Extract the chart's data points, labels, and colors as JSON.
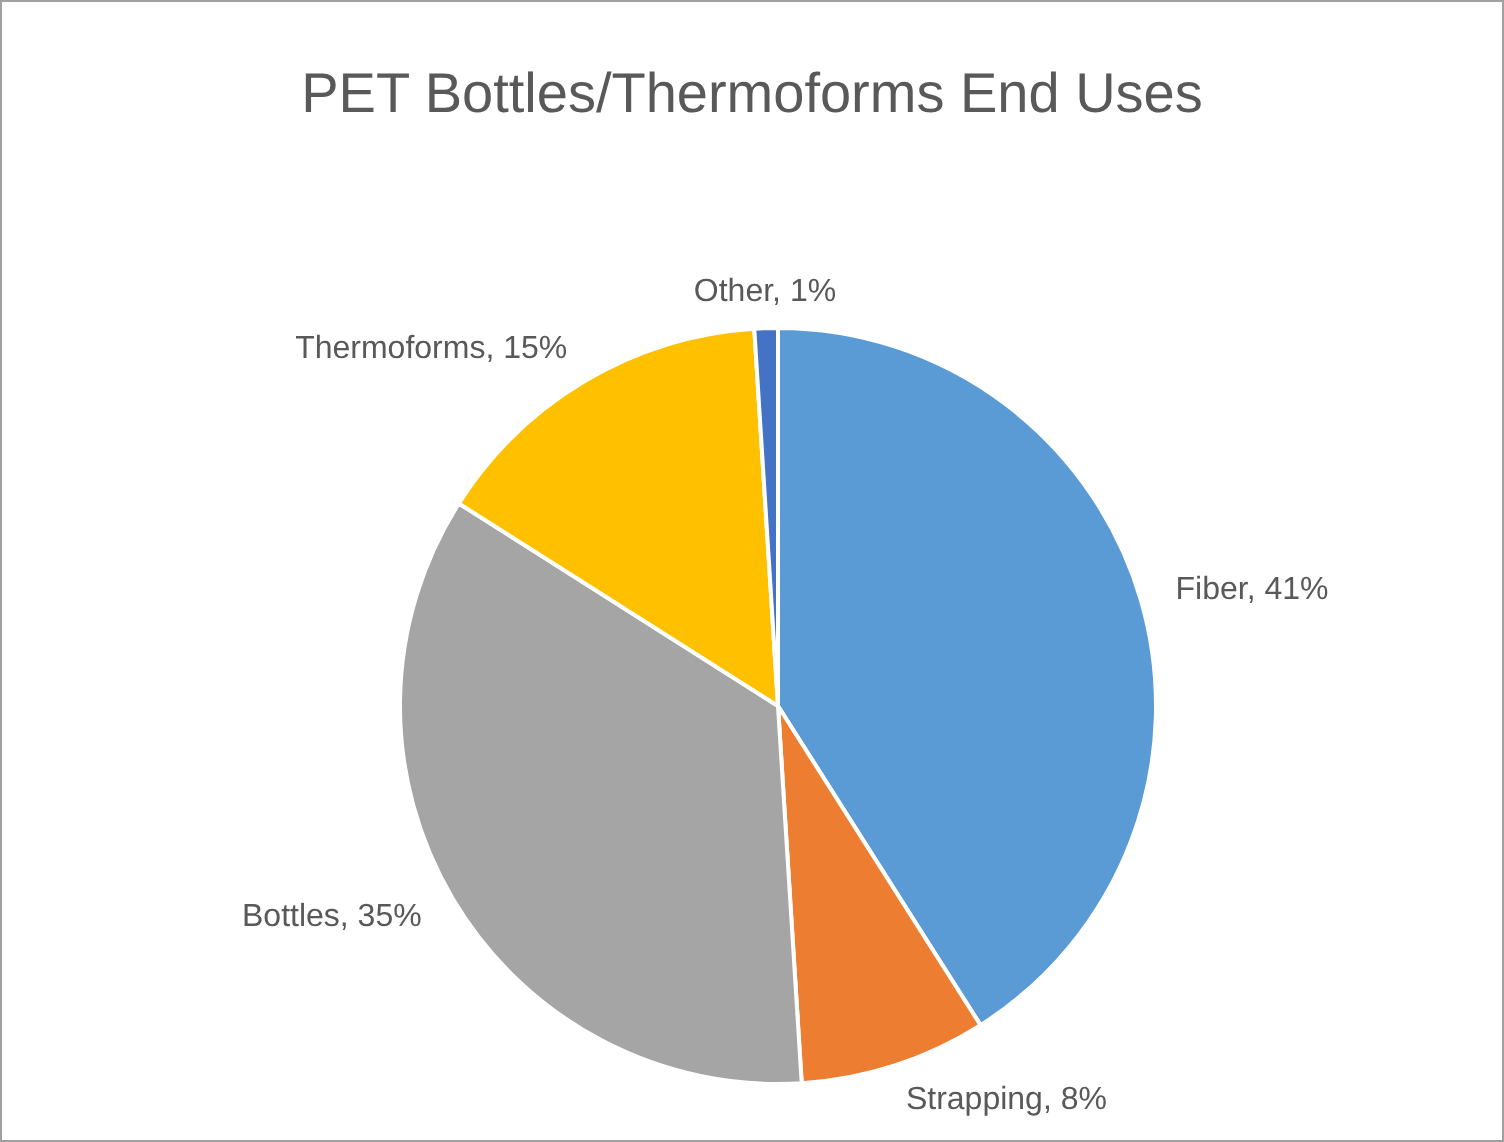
{
  "chart_data": {
    "type": "pie",
    "title": "PET Bottles/Thermoforms End Uses",
    "categories": [
      "Fiber",
      "Strapping",
      "Bottles",
      "Thermoforms",
      "Other"
    ],
    "values": [
      41,
      8,
      35,
      15,
      1
    ],
    "value_labels": [
      "41%",
      "8%",
      "35%",
      "15%",
      "1%"
    ],
    "colors": [
      "#5b9bd5",
      "#ed7d31",
      "#a5a5a5",
      "#ffc000",
      "#4472c4"
    ],
    "legend": false
  }
}
